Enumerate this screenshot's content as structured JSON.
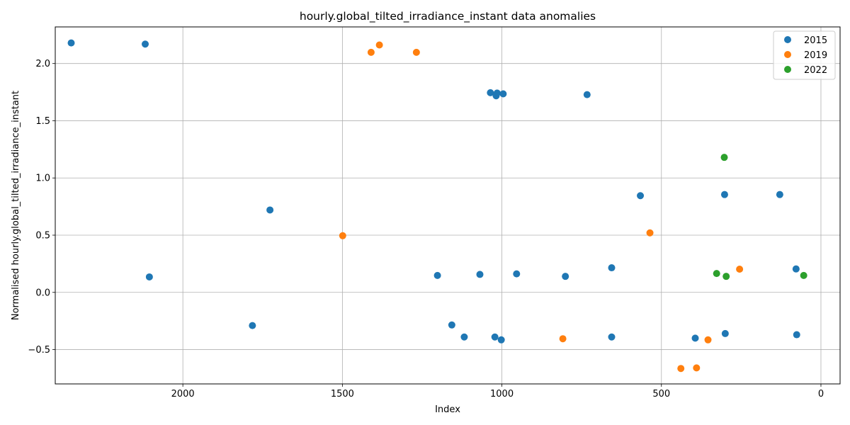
{
  "chart_data": {
    "type": "scatter",
    "title": "hourly.global_tilted_irradiance_instant data anomalies",
    "xlabel": "Index",
    "ylabel": "Normalised hourly.global_tilted_irradiance_instant",
    "xlim": [
      2400,
      -60
    ],
    "ylim": [
      -0.8,
      2.32
    ],
    "x_inverted": true,
    "xticks": [
      2000,
      1500,
      1000,
      500,
      0
    ],
    "yticks": [
      -0.5,
      0.0,
      0.5,
      1.0,
      1.5,
      2.0
    ],
    "xtick_labels": [
      "2000",
      "1500",
      "1000",
      "500",
      "0"
    ],
    "ytick_labels": [
      "−0.5",
      "0.0",
      "0.5",
      "1.0",
      "1.5",
      "2.0"
    ],
    "grid": true,
    "legend_position": "top-right",
    "series": [
      {
        "name": "2015",
        "color": "#1f77b4",
        "points": [
          [
            2350,
            2.18
          ],
          [
            2118,
            2.17
          ],
          [
            2105,
            0.135
          ],
          [
            1782,
            -0.29
          ],
          [
            1727,
            0.72
          ],
          [
            1202,
            0.148
          ],
          [
            1157,
            -0.285
          ],
          [
            1118,
            -0.39
          ],
          [
            1069,
            0.157
          ],
          [
            1036,
            1.745
          ],
          [
            1022,
            -0.39
          ],
          [
            1018,
            1.718
          ],
          [
            1015,
            1.742
          ],
          [
            1002,
            -0.415
          ],
          [
            996,
            1.735
          ],
          [
            954,
            0.162
          ],
          [
            801,
            0.14
          ],
          [
            733,
            1.728
          ],
          [
            656,
            -0.39
          ],
          [
            656,
            0.215
          ],
          [
            566,
            0.845
          ],
          [
            394,
            -0.4
          ],
          [
            302,
            0.855
          ],
          [
            300,
            -0.36
          ],
          [
            129,
            0.855
          ],
          [
            78,
            0.205
          ],
          [
            76,
            -0.37
          ]
        ]
      },
      {
        "name": "2019",
        "color": "#ff7f0e",
        "points": [
          [
            1499,
            0.495
          ],
          [
            1410,
            2.098
          ],
          [
            1384,
            2.162
          ],
          [
            1268,
            2.098
          ],
          [
            809,
            -0.405
          ],
          [
            536,
            0.52
          ],
          [
            439,
            -0.665
          ],
          [
            390,
            -0.66
          ],
          [
            354,
            -0.415
          ],
          [
            255,
            0.203
          ]
        ]
      },
      {
        "name": "2022",
        "color": "#2ca02c",
        "points": [
          [
            303,
            1.18
          ],
          [
            327,
            0.165
          ],
          [
            297,
            0.14
          ],
          [
            54,
            0.148
          ]
        ]
      }
    ]
  }
}
